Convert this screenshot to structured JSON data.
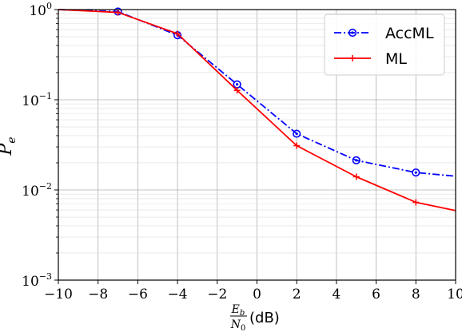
{
  "chart_data": {
    "type": "line",
    "xlabel_math_numerator": "E",
    "xlabel_math_numerator_sub": "b",
    "xlabel_math_denominator": "N",
    "xlabel_math_denominator_sub": "0",
    "xlabel_unit": "(dB)",
    "ylabel": "P",
    "ylabel_sub": "e",
    "xlim": [
      -10,
      10
    ],
    "ylim": [
      0.001,
      1
    ],
    "yscale": "log",
    "grid": true,
    "legend_position": "top-right",
    "x_ticks": [
      -10,
      -8,
      -6,
      -4,
      -2,
      0,
      2,
      4,
      6,
      8,
      10
    ],
    "x_tick_labels": [
      "−10",
      "−8",
      "−6",
      "−4",
      "−2",
      "0",
      "2",
      "4",
      "6",
      "8",
      "10"
    ],
    "y_ticks": [
      {
        "value": 1,
        "base": "10",
        "exp": "0"
      },
      {
        "value": 0.1,
        "base": "10",
        "exp": "−1"
      },
      {
        "value": 0.01,
        "base": "10",
        "exp": "−2"
      },
      {
        "value": 0.001,
        "base": "10",
        "exp": "−3"
      }
    ],
    "series": [
      {
        "name": "AccML",
        "color": "#0000ff",
        "line_style": "dashdot",
        "marker": "circle",
        "x": [
          -10,
          -7,
          -4,
          -1,
          2,
          5,
          8,
          10
        ],
        "y": [
          1.0,
          0.95,
          0.52,
          0.148,
          0.042,
          0.0213,
          0.0156,
          0.0142
        ],
        "marker_x": [
          -7,
          -4,
          -1,
          2,
          5,
          8
        ]
      },
      {
        "name": "ML",
        "color": "#ff0000",
        "line_style": "solid",
        "marker": "plus",
        "x": [
          -10,
          -7,
          -4,
          -1,
          2,
          5,
          8,
          10
        ],
        "y": [
          1.0,
          0.93,
          0.54,
          0.127,
          0.031,
          0.014,
          0.0073,
          0.0059
        ],
        "marker_x": [
          -7,
          -4,
          -1,
          2,
          5,
          8
        ]
      }
    ]
  }
}
